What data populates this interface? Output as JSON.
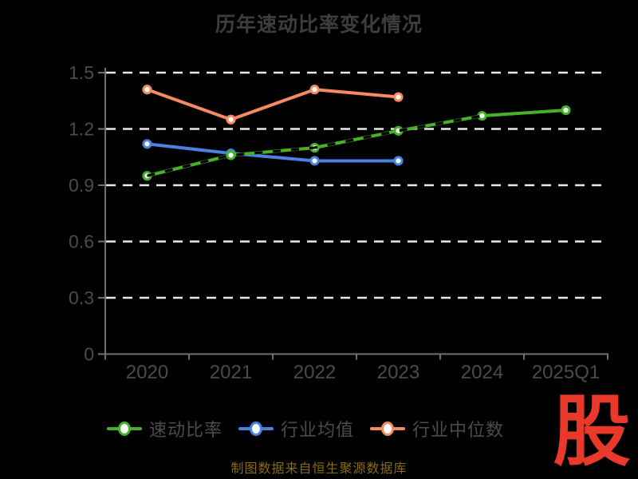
{
  "page": {
    "background": "#000000"
  },
  "chart_data": {
    "type": "line",
    "title": "历年速动比率变化情况",
    "categories": [
      "2020",
      "2021",
      "2022",
      "2023",
      "2024",
      "2025Q1"
    ],
    "yticks": [
      0,
      0.3,
      0.6,
      0.9,
      1.2,
      1.5
    ],
    "ylim": [
      0,
      1.5
    ],
    "grid": "horizontal-dashed",
    "legend_position": "bottom",
    "series": [
      {
        "name": "速动比率",
        "color": "#45b229",
        "values": [
          0.95,
          1.06,
          1.1,
          1.19,
          1.27,
          1.3
        ],
        "marker": "circle-white-fill",
        "overlay_dashed_black_span": [
          "2020",
          "2024"
        ]
      },
      {
        "name": "行业均值",
        "color": "#4a82df",
        "values": [
          1.12,
          1.07,
          1.03,
          1.03,
          null,
          null
        ],
        "marker": "circle-white-fill"
      },
      {
        "name": "行业中位数",
        "color": "#f78a62",
        "values": [
          1.41,
          1.25,
          1.41,
          1.37,
          null,
          null
        ],
        "marker": "circle-white-fill"
      }
    ]
  },
  "footer": {
    "source_note": "制图数据来自恒生聚源数据库",
    "color": "#8a6b10"
  },
  "logo": {
    "text": "股",
    "color": "#e8392b"
  }
}
